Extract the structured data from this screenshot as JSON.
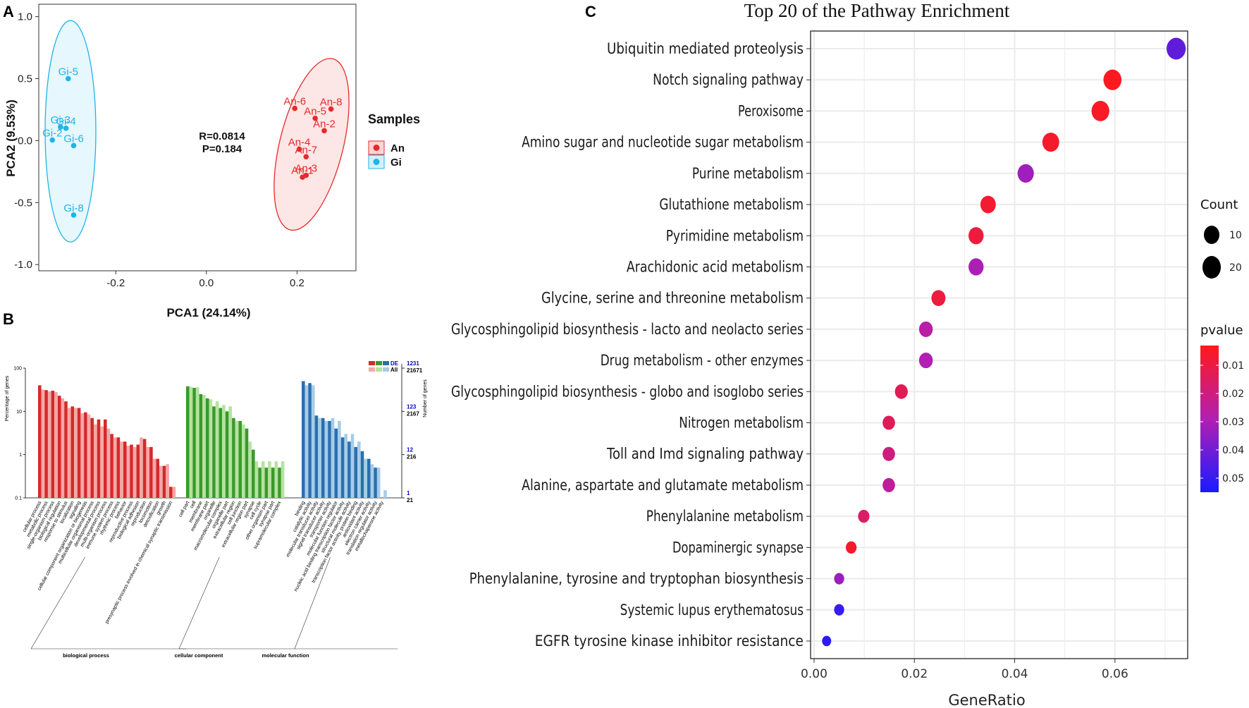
{
  "panels": {
    "a": {
      "letter": "A"
    },
    "b": {
      "letter": "B"
    },
    "c": {
      "letter": "C"
    }
  },
  "colors": {
    "an": "#e8292b",
    "gi": "#1eb4e8",
    "go_bio_de": "#d42a2a",
    "go_bio_all": "#f5a7a7",
    "go_cell_de": "#3a9a2a",
    "go_cell_all": "#b4e3a0",
    "go_mol_de": "#2a6fb0",
    "go_mol_all": "#a6cce8",
    "grid": "#ebebeb",
    "gradient_low": "#ff1a1a",
    "gradient_mid": "#b21fb2",
    "gradient_high": "#1a1aff",
    "right_axis_blue": "#0000cc"
  },
  "chart_data": [
    {
      "type": "scatter",
      "panel": "A",
      "title": "",
      "xlabel": "PCA1 (24.14%)",
      "ylabel": "PCA2 (9.53%)",
      "xlim": [
        -0.37,
        0.33
      ],
      "ylim": [
        -1.05,
        1.1
      ],
      "xticks": [
        "-0.2",
        "0.0",
        "0.2"
      ],
      "yticks": [
        "1.0",
        "0.5",
        "0.0",
        "-0.5",
        "-1.0"
      ],
      "annotation": [
        "R=0.0814",
        "P=0.184"
      ],
      "legend_title": "Samples",
      "series": [
        {
          "name": "An",
          "points": [
            {
              "label": "An-6",
              "x": 0.195,
              "y": 0.26
            },
            {
              "label": "An-8",
              "x": 0.275,
              "y": 0.255
            },
            {
              "label": "An-5",
              "x": 0.24,
              "y": 0.18
            },
            {
              "label": "An-2",
              "x": 0.26,
              "y": 0.08
            },
            {
              "label": "An-4",
              "x": 0.205,
              "y": -0.07
            },
            {
              "label": "An-7",
              "x": 0.22,
              "y": -0.13
            },
            {
              "label": "An-3",
              "x": 0.22,
              "y": -0.28
            },
            {
              "label": "An-1",
              "x": 0.212,
              "y": -0.295
            }
          ]
        },
        {
          "name": "Gi",
          "points": [
            {
              "label": "Gi-5",
              "x": -0.305,
              "y": 0.5
            },
            {
              "label": "Gi-3",
              "x": -0.322,
              "y": 0.11
            },
            {
              "label": "Gi-4",
              "x": -0.31,
              "y": 0.1
            },
            {
              "label": "Gi-2",
              "x": -0.34,
              "y": 0.005
            },
            {
              "label": "Gi-6",
              "x": -0.293,
              "y": -0.04
            },
            {
              "label": "Gi-8",
              "x": -0.293,
              "y": -0.6
            }
          ]
        }
      ]
    },
    {
      "type": "bar",
      "panel": "B",
      "title": "",
      "ylabel_left": "Percentage of genes",
      "ylabel_right": "Number of genes",
      "ylim": [
        0.1,
        100
      ],
      "yscale": "log",
      "left_ticks": [
        "100",
        "10",
        "1",
        "0.1"
      ],
      "right_ticks_de": [
        "1231",
        "123",
        "12",
        "1"
      ],
      "right_ticks_all": [
        "21671",
        "2167",
        "216",
        "21"
      ],
      "legend": [
        "DE",
        "All"
      ],
      "groups": [
        {
          "name": "biological process",
          "categories": [
            {
              "term": "cellular process",
              "de": 40,
              "all": 32
            },
            {
              "term": "metabolic process",
              "de": 31,
              "all": 29
            },
            {
              "term": "single-organism process",
              "de": 30,
              "all": 28
            },
            {
              "term": "biological regulation",
              "de": 23,
              "all": 20
            },
            {
              "term": "response to stimulus",
              "de": 17,
              "all": 12
            },
            {
              "term": "localization",
              "de": 13,
              "all": 12
            },
            {
              "term": "signaling",
              "de": 12,
              "all": 9
            },
            {
              "term": "cellular component organization or biogenesis",
              "de": 9.5,
              "all": 8.5
            },
            {
              "term": "multicellular organismal process",
              "de": 7,
              "all": 5
            },
            {
              "term": "developmental process",
              "de": 6.5,
              "all": 4.5
            },
            {
              "term": "multi-organism process",
              "de": 6.5,
              "all": 4
            },
            {
              "term": "immune system process",
              "de": 3,
              "all": 2.5
            },
            {
              "term": "rhythmic process",
              "de": 2.5,
              "all": 2
            },
            {
              "term": "behavior",
              "de": 2,
              "all": 1.6
            },
            {
              "term": "reproductive process",
              "de": 1.7,
              "all": 1.5
            },
            {
              "term": "biological adhesion",
              "de": 1.7,
              "all": 2.5
            },
            {
              "term": "reproduction",
              "de": 2.3,
              "all": 1.5
            },
            {
              "term": "locomotion",
              "de": 1.5,
              "all": 0.8
            },
            {
              "term": "detoxification",
              "de": 0.8,
              "all": 0.55
            },
            {
              "term": "growth",
              "de": 0.55,
              "all": 0.6
            },
            {
              "term": "presynaptic process involved in chemical synaptic transmission",
              "de": 0.18,
              "all": 0.18
            }
          ]
        },
        {
          "name": "cellular component",
          "categories": [
            {
              "term": "cell part",
              "de": 38,
              "all": 37
            },
            {
              "term": "cell",
              "de": 35,
              "all": 36
            },
            {
              "term": "membrane",
              "de": 25,
              "all": 24
            },
            {
              "term": "membrane part",
              "de": 20,
              "all": 19
            },
            {
              "term": "organelle",
              "de": 13,
              "all": 17
            },
            {
              "term": "macromolecular complex",
              "de": 12,
              "all": 14
            },
            {
              "term": "organelle part",
              "de": 10,
              "all": 13
            },
            {
              "term": "extracellular region",
              "de": 7,
              "all": 6
            },
            {
              "term": "cell junction",
              "de": 6,
              "all": 5
            },
            {
              "term": "extracellular region part",
              "de": 4,
              "all": 2
            },
            {
              "term": "synapse",
              "de": 1.3,
              "all": 0.7
            },
            {
              "term": "cell cycle",
              "de": 0.5,
              "all": 0.7
            },
            {
              "term": "other organism part",
              "de": 0.5,
              "all": 0.7
            },
            {
              "term": "synapse part",
              "de": 0.5,
              "all": 0.7
            },
            {
              "term": "supramolecular complex",
              "de": 0.5,
              "all": 0.7
            }
          ]
        },
        {
          "name": "molecular function",
          "categories": [
            {
              "term": "binding",
              "de": 50,
              "all": 40
            },
            {
              "term": "catalytic activity",
              "de": 45,
              "all": 40
            },
            {
              "term": "molecular transducer activity",
              "de": 8,
              "all": 7
            },
            {
              "term": "signal transducer activity",
              "de": 7,
              "all": 6
            },
            {
              "term": "transporter activity",
              "de": 6,
              "all": 7
            },
            {
              "term": "molecular function regulator",
              "de": 4,
              "all": 6
            },
            {
              "term": "nucleic acid binding transcription factor activity",
              "de": 2.5,
              "all": 3
            },
            {
              "term": "structural molecule activity",
              "de": 2,
              "all": 3
            },
            {
              "term": "transcription factor activity, protein binding",
              "de": 1.5,
              "all": 2
            },
            {
              "term": "antioxidant activity",
              "de": 1.2,
              "all": 0.8
            },
            {
              "term": "electron carrier activity",
              "de": 0.8,
              "all": 0.6
            },
            {
              "term": "translation regulator activity",
              "de": 0.5,
              "all": 0.5
            },
            {
              "term": "metallochaperone activity",
              "de": 0.1,
              "all": 0.15
            }
          ]
        }
      ]
    },
    {
      "type": "scatter",
      "panel": "C",
      "title": "Top 20 of the Pathway Enrichment",
      "xlabel": "GeneRatio",
      "ylabel": "",
      "xlim": [
        -0.0007,
        0.0745
      ],
      "xticks": [
        "0.00",
        "0.02",
        "0.04",
        "0.06"
      ],
      "size_legend_title": "Count",
      "size_legend": [
        "10",
        "20"
      ],
      "color_legend_title": "pvalue",
      "color_legend_ticks": [
        "0.01",
        "0.02",
        "0.03",
        "0.04",
        "0.05"
      ],
      "pathways": [
        {
          "name": "Ubiquitin mediated proteolysis",
          "ratio": 0.0722,
          "count": 29,
          "pvalue": 0.043
        },
        {
          "name": "Notch signaling pathway",
          "ratio": 0.0595,
          "count": 24,
          "pvalue": 0.004
        },
        {
          "name": "Peroxisome",
          "ratio": 0.0571,
          "count": 23,
          "pvalue": 0.005
        },
        {
          "name": "Amino sugar and nucleotide sugar metabolism",
          "ratio": 0.0472,
          "count": 19,
          "pvalue": 0.006
        },
        {
          "name": "Purine metabolism",
          "ratio": 0.0422,
          "count": 17,
          "pvalue": 0.032
        },
        {
          "name": "Glutathione metabolism",
          "ratio": 0.0347,
          "count": 14,
          "pvalue": 0.007
        },
        {
          "name": "Pyrimidine metabolism",
          "ratio": 0.0323,
          "count": 13,
          "pvalue": 0.009
        },
        {
          "name": "Arachidonic acid metabolism",
          "ratio": 0.0323,
          "count": 13,
          "pvalue": 0.03
        },
        {
          "name": "Glycine, serine and threonine metabolism",
          "ratio": 0.0248,
          "count": 10,
          "pvalue": 0.009
        },
        {
          "name": "Glycosphingolipid biosynthesis - lacto and neolacto series",
          "ratio": 0.0223,
          "count": 9,
          "pvalue": 0.027
        },
        {
          "name": "Drug metabolism - other enzymes",
          "ratio": 0.0223,
          "count": 9,
          "pvalue": 0.029
        },
        {
          "name": "Glycosphingolipid biosynthesis - globo and isoglobo series",
          "ratio": 0.0174,
          "count": 7,
          "pvalue": 0.013
        },
        {
          "name": "Nitrogen metabolism",
          "ratio": 0.0149,
          "count": 6,
          "pvalue": 0.014
        },
        {
          "name": "Toll and Imd signaling pathway",
          "ratio": 0.0149,
          "count": 6,
          "pvalue": 0.02
        },
        {
          "name": "Alanine, aspartate and glutamate metabolism",
          "ratio": 0.0149,
          "count": 6,
          "pvalue": 0.025
        },
        {
          "name": "Phenylalanine metabolism",
          "ratio": 0.0099,
          "count": 4,
          "pvalue": 0.016
        },
        {
          "name": "Dopaminergic synapse",
          "ratio": 0.0074,
          "count": 3,
          "pvalue": 0.006
        },
        {
          "name": "Phenylalanine, tyrosine and tryptophan biosynthesis",
          "ratio": 0.005,
          "count": 2,
          "pvalue": 0.033
        },
        {
          "name": "Systemic lupus erythematosus",
          "ratio": 0.005,
          "count": 2,
          "pvalue": 0.05
        },
        {
          "name": "EGFR tyrosine kinase inhibitor resistance",
          "ratio": 0.0025,
          "count": 1,
          "pvalue": 0.052
        }
      ]
    }
  ]
}
